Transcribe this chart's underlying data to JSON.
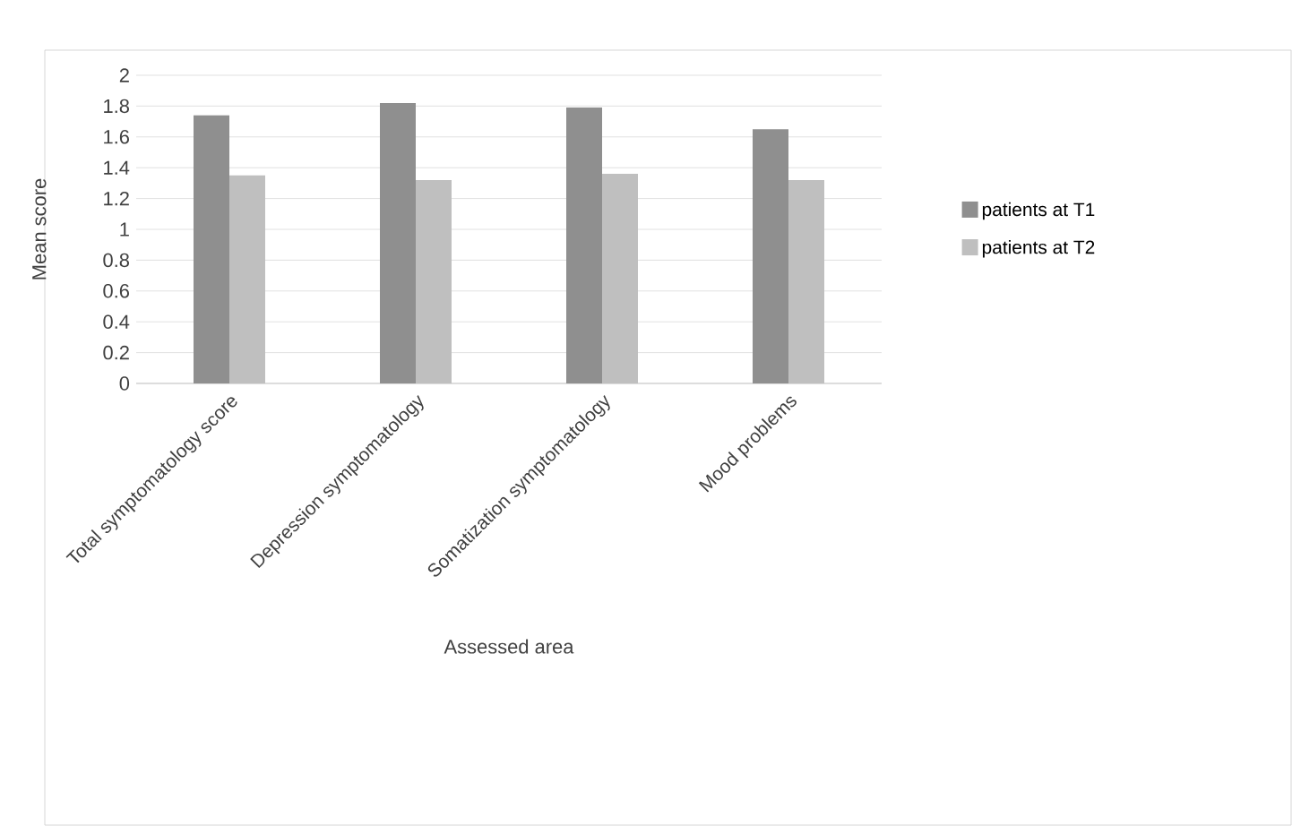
{
  "chart_data": {
    "type": "bar",
    "xlabel": "Assessed area",
    "ylabel": "Mean score",
    "categories": [
      "Total symptomatology score",
      "Depression symptomatology",
      "Somatization symptomatology",
      "Mood problems"
    ],
    "series": [
      {
        "name": "patients at T1",
        "color": "#8f8f8f",
        "values": [
          1.74,
          1.82,
          1.79,
          1.65
        ]
      },
      {
        "name": "patients at T2",
        "color": "#bfbfbf",
        "values": [
          1.35,
          1.32,
          1.36,
          1.32
        ]
      }
    ],
    "ylim": [
      0,
      2
    ],
    "yticks": [
      0,
      0.2,
      0.4,
      0.6,
      0.8,
      1,
      1.2,
      1.4,
      1.6,
      1.8,
      2
    ],
    "grid": "y",
    "legend": "right"
  }
}
